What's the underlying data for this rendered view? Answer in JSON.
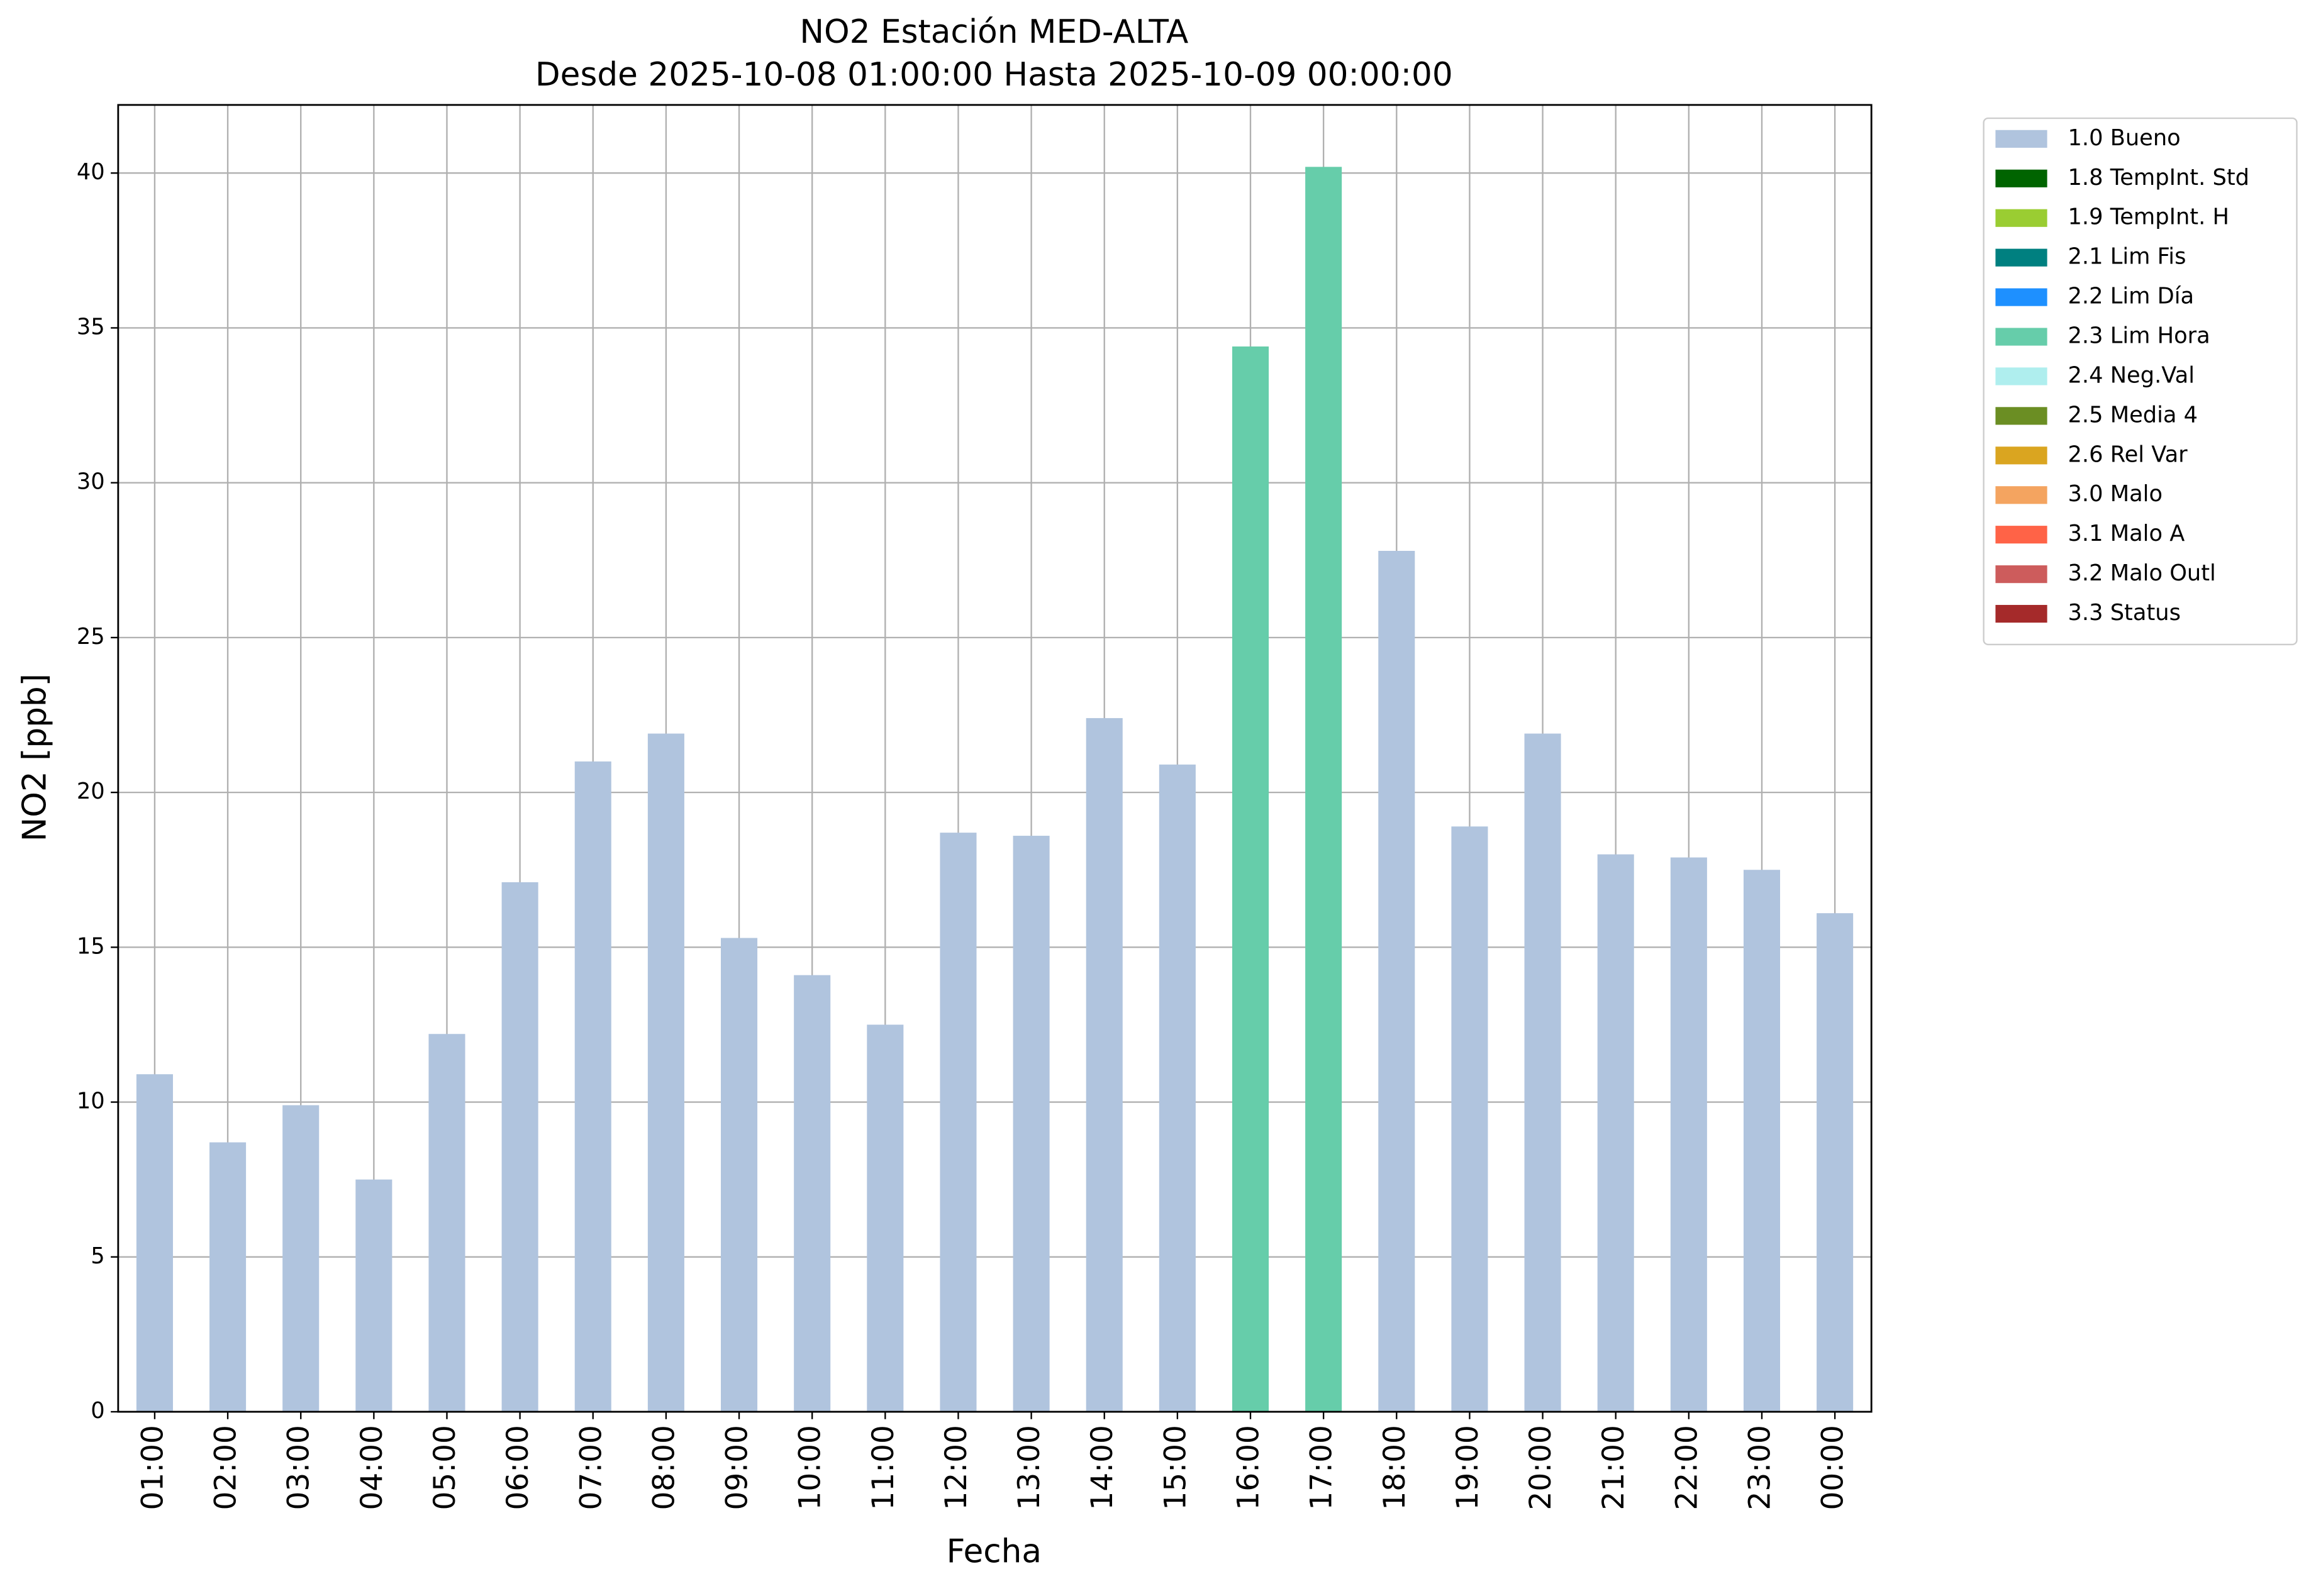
{
  "chart_data": {
    "type": "bar",
    "stacked": true,
    "title": "NO2 Estación MED-ALTA",
    "subtitle": "Desde 2025-10-08 01:00:00 Hasta 2025-10-09 00:00:00",
    "y_label": "NO2 [ppb]",
    "x_label": "Fecha",
    "categories": [
      "01:00",
      "02:00",
      "03:00",
      "04:00",
      "05:00",
      "06:00",
      "07:00",
      "08:00",
      "09:00",
      "10:00",
      "11:00",
      "12:00",
      "13:00",
      "14:00",
      "15:00",
      "16:00",
      "17:00",
      "18:00",
      "19:00",
      "20:00",
      "21:00",
      "22:00",
      "23:00",
      "00:00"
    ],
    "series": [
      {
        "name": "1.0 Bueno",
        "color": "#b0c4de",
        "values": [
          10.9,
          8.7,
          9.9,
          7.5,
          12.2,
          17.1,
          21.0,
          21.9,
          15.3,
          14.1,
          12.5,
          18.7,
          18.6,
          22.4,
          20.9,
          null,
          null,
          27.8,
          18.9,
          21.9,
          18.0,
          17.9,
          17.5,
          16.1
        ]
      },
      {
        "name": "1.8 TempInt. Std",
        "color": "#006400",
        "values": [
          null,
          null,
          null,
          null,
          null,
          null,
          null,
          null,
          null,
          null,
          null,
          null,
          null,
          null,
          null,
          null,
          null,
          null,
          null,
          null,
          null,
          null,
          null,
          null
        ]
      },
      {
        "name": "1.9 TempInt. H",
        "color": "#9acd32",
        "values": [
          null,
          null,
          null,
          null,
          null,
          null,
          null,
          null,
          null,
          null,
          null,
          null,
          null,
          null,
          null,
          null,
          null,
          null,
          null,
          null,
          null,
          null,
          null,
          null
        ]
      },
      {
        "name": "2.1 Lim Fis",
        "color": "#008080",
        "values": [
          null,
          null,
          null,
          null,
          null,
          null,
          null,
          null,
          null,
          null,
          null,
          null,
          null,
          null,
          null,
          null,
          null,
          null,
          null,
          null,
          null,
          null,
          null,
          null
        ]
      },
      {
        "name": "2.2 Lim Día",
        "color": "#1e90ff",
        "values": [
          null,
          null,
          null,
          null,
          null,
          null,
          null,
          null,
          null,
          null,
          null,
          null,
          null,
          null,
          null,
          null,
          null,
          null,
          null,
          null,
          null,
          null,
          null,
          null
        ]
      },
      {
        "name": "2.3 Lim Hora",
        "color": "#66cdaa",
        "values": [
          null,
          null,
          null,
          null,
          null,
          null,
          null,
          null,
          null,
          null,
          null,
          null,
          null,
          null,
          null,
          34.4,
          40.2,
          null,
          null,
          null,
          null,
          null,
          null,
          null
        ]
      },
      {
        "name": "2.4 Neg.Val",
        "color": "#afeeee",
        "values": [
          null,
          null,
          null,
          null,
          null,
          null,
          null,
          null,
          null,
          null,
          null,
          null,
          null,
          null,
          null,
          null,
          null,
          null,
          null,
          null,
          null,
          null,
          null,
          null
        ]
      },
      {
        "name": "2.5 Media 4",
        "color": "#6b8e23",
        "values": [
          null,
          null,
          null,
          null,
          null,
          null,
          null,
          null,
          null,
          null,
          null,
          null,
          null,
          null,
          null,
          null,
          null,
          null,
          null,
          null,
          null,
          null,
          null,
          null
        ]
      },
      {
        "name": "2.6 Rel Var",
        "color": "#daa520",
        "values": [
          null,
          null,
          null,
          null,
          null,
          null,
          null,
          null,
          null,
          null,
          null,
          null,
          null,
          null,
          null,
          null,
          null,
          null,
          null,
          null,
          null,
          null,
          null,
          null
        ]
      },
      {
        "name": "3.0 Malo",
        "color": "#f4a460",
        "values": [
          null,
          null,
          null,
          null,
          null,
          null,
          null,
          null,
          null,
          null,
          null,
          null,
          null,
          null,
          null,
          null,
          null,
          null,
          null,
          null,
          null,
          null,
          null,
          null
        ]
      },
      {
        "name": "3.1 Malo A",
        "color": "#ff6347",
        "values": [
          null,
          null,
          null,
          null,
          null,
          null,
          null,
          null,
          null,
          null,
          null,
          null,
          null,
          null,
          null,
          null,
          null,
          null,
          null,
          null,
          null,
          null,
          null,
          null
        ]
      },
      {
        "name": "3.2 Malo Outl",
        "color": "#cd5c5c",
        "values": [
          null,
          null,
          null,
          null,
          null,
          null,
          null,
          null,
          null,
          null,
          null,
          null,
          null,
          null,
          null,
          null,
          null,
          null,
          null,
          null,
          null,
          null,
          null,
          null
        ]
      },
      {
        "name": "3.3 Status",
        "color": "#a52a2a",
        "values": [
          null,
          null,
          null,
          null,
          null,
          null,
          null,
          null,
          null,
          null,
          null,
          null,
          null,
          null,
          null,
          null,
          null,
          null,
          null,
          null,
          null,
          null,
          null,
          null
        ]
      }
    ],
    "ylim": [
      0,
      42.2
    ],
    "yticks": [
      0,
      5,
      10,
      15,
      20,
      25,
      30,
      35,
      40
    ],
    "grid": true,
    "legend": "outside-right"
  }
}
